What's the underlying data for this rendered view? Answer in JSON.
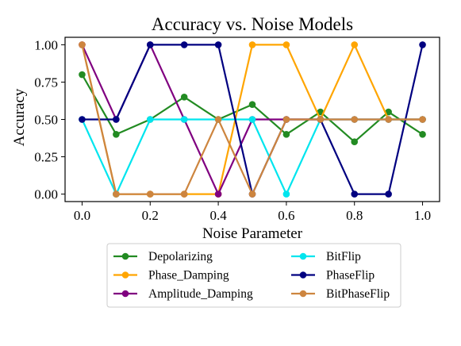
{
  "chart_data": {
    "type": "line",
    "title": "Accuracy vs. Noise Models",
    "xlabel": "Noise Parameter",
    "ylabel": "Accuracy",
    "xlim": [
      -0.05,
      1.05
    ],
    "ylim": [
      -0.05,
      1.05
    ],
    "x": [
      0.0,
      0.1,
      0.2,
      0.3,
      0.4,
      0.5,
      0.6,
      0.7,
      0.8,
      0.9,
      1.0
    ],
    "xticks": [
      0.0,
      0.2,
      0.4,
      0.6,
      0.8,
      1.0
    ],
    "xtick_labels": [
      "0.0",
      "0.2",
      "0.4",
      "0.6",
      "0.8",
      "1.0"
    ],
    "yticks": [
      0.0,
      0.25,
      0.5,
      0.75,
      1.0
    ],
    "ytick_labels": [
      "0.00",
      "0.25",
      "0.50",
      "0.75",
      "1.00"
    ],
    "grid": false,
    "legend_placement": "below",
    "series": [
      {
        "name": "Depolarizing",
        "color": "#228B22",
        "values": [
          0.8,
          0.4,
          0.5,
          0.65,
          0.5,
          0.6,
          0.4,
          0.55,
          0.35,
          0.55,
          0.4
        ]
      },
      {
        "name": "Phase_Damping",
        "color": "#FFA500",
        "values": [
          1.0,
          0.0,
          0.0,
          0.0,
          0.0,
          1.0,
          1.0,
          0.5,
          1.0,
          0.5,
          0.5
        ]
      },
      {
        "name": "Amplitude_Damping",
        "color": "#800080",
        "values": [
          1.0,
          0.5,
          1.0,
          0.5,
          0.0,
          0.5,
          0.5,
          0.5,
          0.5,
          0.5,
          0.5
        ]
      },
      {
        "name": "BitFlip",
        "color": "#00E5EE",
        "values": [
          0.5,
          0.0,
          0.5,
          0.5,
          0.5,
          0.5,
          0.0,
          0.5,
          0.5,
          0.5,
          0.5
        ]
      },
      {
        "name": "PhaseFlip",
        "color": "#000080",
        "values": [
          0.5,
          0.5,
          1.0,
          1.0,
          1.0,
          0.0,
          0.5,
          0.5,
          0.0,
          0.0,
          1.0
        ]
      },
      {
        "name": "BitPhaseFlip",
        "color": "#CD853F",
        "values": [
          1.0,
          0.0,
          0.0,
          0.0,
          0.5,
          0.0,
          0.5,
          0.5,
          0.5,
          0.5,
          0.5
        ]
      }
    ]
  }
}
